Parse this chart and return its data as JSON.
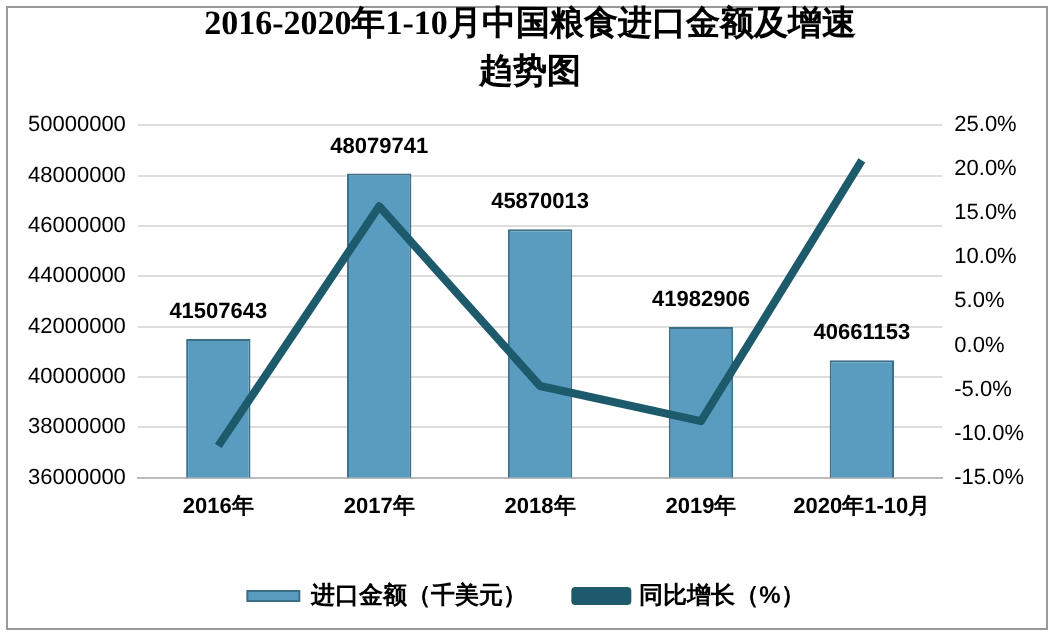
{
  "chart_data": {
    "type": "bar",
    "title": "2016-2020年1-10月中国粮食进口金额及增速趋势图",
    "categories": [
      "2016年",
      "2017年",
      "2018年",
      "2019年",
      "2020年1-10月"
    ],
    "series": [
      {
        "name": "进口金额（千美元）",
        "color": "#5a9cc0",
        "values": [
          41507643,
          48079741,
          45870013,
          41982906,
          40661153
        ],
        "value_labels": [
          "41507643",
          "48079741",
          "45870013",
          "41982906",
          "40661153"
        ]
      },
      {
        "name": "同比增长（%）",
        "type": "line",
        "axis": "y2",
        "color": "#1c5a6c",
        "values": [
          -11.4,
          15.8,
          -4.6,
          -8.6,
          21.0
        ]
      }
    ],
    "ylim": [
      36000000,
      50000000
    ],
    "yticks": [
      36000000,
      38000000,
      40000000,
      42000000,
      44000000,
      46000000,
      48000000,
      50000000
    ],
    "y2lim": [
      -15,
      25
    ],
    "y2ticks": [
      {
        "value": -15,
        "label": "-15.0%"
      },
      {
        "value": -10,
        "label": "-10.0%"
      },
      {
        "value": -5,
        "label": "-5.0%"
      },
      {
        "value": 0,
        "label": "0.0%"
      },
      {
        "value": 5,
        "label": "5.0%"
      },
      {
        "value": 10,
        "label": "10.0%"
      },
      {
        "value": 15,
        "label": "15.0%"
      },
      {
        "value": 20,
        "label": "20.0%"
      },
      {
        "value": 25,
        "label": "25.0%"
      }
    ],
    "grid": "y",
    "legend": "bottom",
    "marker": "none",
    "line_style": "solid"
  }
}
